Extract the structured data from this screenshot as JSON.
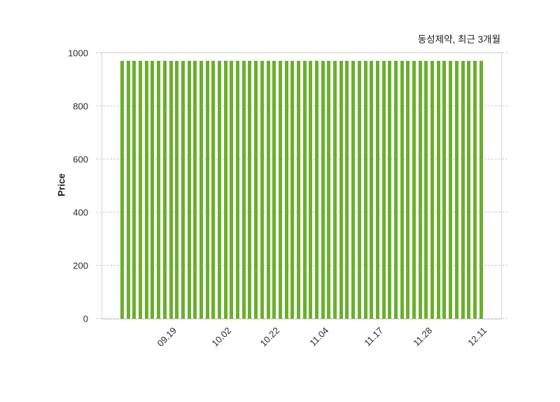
{
  "figure": {
    "title": "동성제약, 최근 3개월",
    "ylabel": "Price"
  },
  "chart_data": {
    "type": "bar",
    "title": "동성제약, 최근 3개월",
    "xlabel": "",
    "ylabel": "Price",
    "ylim": [
      0,
      1000
    ],
    "yticks": [
      0,
      200,
      400,
      600,
      800,
      1000
    ],
    "grid": true,
    "legend": false,
    "bar_color": "#6ab02c",
    "values": [
      970,
      970,
      970,
      970,
      970,
      970,
      970,
      970,
      970,
      970,
      970,
      970,
      970,
      970,
      970,
      970,
      970,
      970,
      970,
      970,
      970,
      970,
      970,
      970,
      970,
      970,
      970,
      970,
      970,
      970,
      970,
      970,
      970,
      970,
      970,
      970,
      970,
      970,
      970,
      970,
      970,
      970,
      970,
      970,
      970,
      970,
      970,
      970,
      970,
      970,
      970,
      970,
      970,
      970,
      970,
      970,
      970,
      970,
      970,
      970
    ],
    "x_ticks": [
      {
        "index": 8,
        "label": "09.19"
      },
      {
        "index": 17,
        "label": "10.02"
      },
      {
        "index": 25,
        "label": "10.22"
      },
      {
        "index": 33,
        "label": "11.04"
      },
      {
        "index": 42,
        "label": "11.17"
      },
      {
        "index": 50,
        "label": "11.28"
      },
      {
        "index": 59,
        "label": "12.11"
      }
    ]
  }
}
